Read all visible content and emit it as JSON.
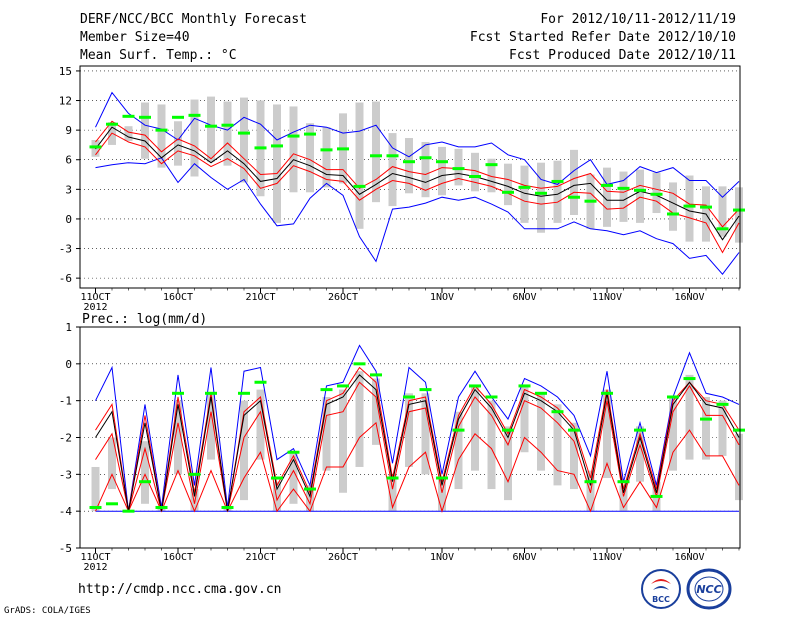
{
  "header": {
    "title": "DERF/NCC/BCC Monthly Forecast",
    "member_size": "Member Size=40",
    "variable": "Mean Surf. Temp.: °C",
    "forecast_period": "For 2012/10/11-2012/11/19",
    "started_refer_date": "Fcst Started Refer Date 2012/10/10",
    "produced_date": "Fcst Produced Date 2012/10/11"
  },
  "footer": {
    "url": "http://cmdp.ncc.cma.gov.cn",
    "grads_credit": "GrADS: COLA/IGES",
    "logo_bcc_text": "BCC",
    "logo_ncc_text": "NCC"
  },
  "colors": {
    "ensemble_mean": "#000000",
    "plus_minus_sd": "#ff0000",
    "max_min": "#0000ff",
    "observed": "#00ff00",
    "range_bar": "#cccccc",
    "grid": "#000000"
  },
  "chart_data": [
    {
      "type": "line",
      "title": "Mean Surf. Temp.: °C",
      "ylim": [
        -7,
        15.5
      ],
      "yticks": [
        15,
        12,
        9,
        6,
        3,
        0,
        -3,
        -6
      ],
      "x_tick_labels": [
        {
          "day": 0,
          "label": "11OCT",
          "sub": "2012"
        },
        {
          "day": 5,
          "label": "16OCT"
        },
        {
          "day": 10,
          "label": "21OCT"
        },
        {
          "day": 15,
          "label": "26OCT"
        },
        {
          "day": 21,
          "label": "1NOV"
        },
        {
          "day": 26,
          "label": "6NOV"
        },
        {
          "day": 31,
          "label": "11NOV"
        },
        {
          "day": 36,
          "label": "16NOV"
        }
      ],
      "series": [
        {
          "name": "max",
          "values": [
            9.3,
            12.8,
            10.7,
            9.5,
            9.1,
            8.0,
            10.2,
            9.5,
            9.0,
            10.3,
            9.6,
            8.0,
            8.8,
            9.5,
            9.3,
            8.7,
            8.9,
            9.5,
            7.2,
            6.3,
            7.5,
            7.8,
            7.3,
            7.3,
            7.7,
            6.5,
            6.0,
            4.0,
            3.5,
            4.9,
            6.0,
            3.5,
            3.9,
            5.3,
            4.7,
            5.2,
            3.9,
            3.9,
            2.2,
            3.8
          ]
        },
        {
          "name": "plus_sd",
          "values": [
            7.8,
            9.9,
            8.8,
            8.5,
            6.8,
            8.1,
            7.4,
            6.1,
            7.7,
            6.1,
            4.5,
            4.6,
            6.6,
            6.0,
            5.0,
            5.0,
            3.1,
            4.0,
            5.3,
            4.8,
            4.5,
            5.2,
            5.1,
            4.9,
            4.3,
            4.0,
            3.4,
            3.1,
            3.3,
            4.1,
            4.6,
            2.8,
            2.7,
            3.4,
            3.0,
            2.6,
            1.5,
            1.4,
            -0.8,
            1.0
          ]
        },
        {
          "name": "mean",
          "values": [
            7.1,
            9.3,
            8.3,
            7.9,
            6.2,
            7.5,
            6.9,
            5.7,
            6.9,
            5.6,
            3.8,
            4.1,
            6.0,
            5.4,
            4.5,
            4.4,
            2.5,
            3.5,
            4.6,
            4.2,
            3.7,
            4.4,
            4.6,
            4.3,
            3.8,
            3.3,
            2.6,
            2.3,
            2.5,
            3.4,
            3.6,
            1.9,
            1.9,
            2.8,
            2.4,
            1.6,
            0.8,
            0.5,
            -2.1,
            0.3
          ]
        },
        {
          "name": "minus_sd",
          "values": [
            6.5,
            8.7,
            7.8,
            7.3,
            5.6,
            6.9,
            6.4,
            5.3,
            6.1,
            5.1,
            3.1,
            3.6,
            5.4,
            4.8,
            4.0,
            3.8,
            1.9,
            3.0,
            3.9,
            3.6,
            2.9,
            3.6,
            4.1,
            3.7,
            3.3,
            2.6,
            1.8,
            1.5,
            1.7,
            2.7,
            2.6,
            1.0,
            1.1,
            2.2,
            1.8,
            0.6,
            0.1,
            -0.4,
            -3.4,
            -0.4
          ]
        },
        {
          "name": "min",
          "values": [
            5.2,
            5.5,
            5.7,
            5.6,
            6.2,
            3.7,
            5.6,
            4.2,
            3.0,
            4.0,
            1.5,
            -0.7,
            -0.5,
            2.1,
            3.6,
            2.4,
            -1.8,
            -4.3,
            1.0,
            1.2,
            1.6,
            2.2,
            1.9,
            2.2,
            1.5,
            0.7,
            -1.0,
            -1.0,
            -1.0,
            -0.3,
            -1.0,
            -1.2,
            -1.6,
            -1.2,
            -2.0,
            -2.5,
            -4.0,
            -3.7,
            -5.6,
            -3.4
          ]
        },
        {
          "name": "observed",
          "values": [
            7.3,
            9.6,
            10.4,
            10.3,
            9.0,
            10.3,
            10.5,
            9.4,
            9.5,
            8.7,
            7.2,
            7.4,
            8.4,
            8.6,
            7.0,
            7.1,
            3.3,
            6.4,
            6.4,
            5.8,
            6.2,
            5.8,
            5.1,
            4.3,
            5.5,
            2.7,
            3.2,
            2.6,
            3.8,
            2.2,
            1.8,
            3.4,
            3.1,
            2.9,
            2.5,
            0.5,
            1.3,
            1.2,
            -1.0,
            0.9
          ]
        },
        {
          "name": "range_top",
          "values": [
            8.0,
            9.8,
            9.4,
            11.8,
            11.6,
            9.9,
            12.1,
            12.4,
            11.9,
            12.3,
            12.0,
            11.6,
            11.4,
            9.7,
            9.3,
            10.7,
            11.8,
            11.9,
            8.7,
            8.2,
            7.8,
            7.3,
            7.1,
            6.7,
            6.1,
            5.6,
            5.4,
            5.7,
            5.9,
            7.0,
            4.5,
            5.2,
            4.8,
            5.0,
            4.7,
            3.7,
            4.4,
            3.3,
            3.3,
            3.2
          ]
        },
        {
          "name": "range_bottom",
          "values": [
            6.3,
            7.5,
            7.9,
            6.1,
            5.2,
            5.4,
            4.3,
            5.8,
            5.4,
            3.7,
            2.3,
            -0.4,
            2.7,
            2.7,
            3.2,
            3.6,
            -1.0,
            1.7,
            1.3,
            2.6,
            2.2,
            2.4,
            3.4,
            2.8,
            2.7,
            1.4,
            -0.4,
            -1.4,
            -0.4,
            0.4,
            -1.0,
            -0.8,
            -0.3,
            -0.4,
            0.6,
            -1.2,
            -2.3,
            -2.3,
            -1.8,
            -2.4
          ]
        }
      ]
    },
    {
      "type": "line",
      "title": "Prec.: log(mm/d)",
      "ylim": [
        -5,
        1
      ],
      "yticks": [
        1,
        0,
        -1,
        -2,
        -3,
        -4,
        -5
      ],
      "x_tick_labels": [
        {
          "day": 0,
          "label": "11OCT",
          "sub": "2012"
        },
        {
          "day": 5,
          "label": "16OCT"
        },
        {
          "day": 10,
          "label": "21OCT"
        },
        {
          "day": 15,
          "label": "26OCT"
        },
        {
          "day": 21,
          "label": "1NOV"
        },
        {
          "day": 26,
          "label": "6NOV"
        },
        {
          "day": 31,
          "label": "11NOV"
        },
        {
          "day": 36,
          "label": "16NOV"
        }
      ],
      "series": [
        {
          "name": "max",
          "values": [
            -1.0,
            -0.1,
            -4.0,
            -1.1,
            -3.9,
            -0.3,
            -3.3,
            -0.1,
            -3.9,
            -0.2,
            -0.1,
            -2.6,
            -2.3,
            -3.3,
            -0.6,
            -0.5,
            0.5,
            -0.2,
            -2.7,
            -0.1,
            -0.5,
            -3.0,
            -0.9,
            -0.2,
            -0.9,
            -1.5,
            -0.4,
            -0.6,
            -0.9,
            -1.4,
            -2.5,
            -0.2,
            -3.2,
            -1.6,
            -3.3,
            -0.9,
            0.3,
            -0.8,
            -0.9,
            -1.1
          ]
        },
        {
          "name": "plus_sd",
          "values": [
            -1.8,
            -1.1,
            -4.0,
            -1.4,
            -4.0,
            -0.9,
            -3.5,
            -0.8,
            -4.0,
            -1.3,
            -0.9,
            -3.3,
            -2.5,
            -3.5,
            -1.0,
            -0.8,
            -0.1,
            -0.5,
            -3.1,
            -1.0,
            -0.9,
            -3.2,
            -1.4,
            -0.6,
            -1.1,
            -1.9,
            -0.7,
            -0.9,
            -1.2,
            -1.7,
            -3.1,
            -0.7,
            -3.4,
            -1.9,
            -3.4,
            -1.0,
            -0.5,
            -1.0,
            -1.1,
            -1.8
          ]
        },
        {
          "name": "mean",
          "values": [
            -2.0,
            -1.3,
            -4.0,
            -1.6,
            -4.0,
            -1.1,
            -3.6,
            -0.9,
            -4.0,
            -1.4,
            -1.0,
            -3.4,
            -2.6,
            -3.6,
            -1.1,
            -0.9,
            -0.3,
            -0.7,
            -3.2,
            -1.1,
            -1.0,
            -3.3,
            -1.5,
            -0.7,
            -1.2,
            -2.0,
            -0.8,
            -1.0,
            -1.3,
            -1.8,
            -3.3,
            -0.8,
            -3.5,
            -2.0,
            -3.5,
            -1.1,
            -0.5,
            -1.1,
            -1.2,
            -2.0
          ]
        },
        {
          "name": "minus_sd",
          "values": [
            -2.6,
            -1.9,
            -4.0,
            -2.3,
            -4.0,
            -1.6,
            -3.8,
            -1.3,
            -4.0,
            -2.0,
            -1.3,
            -3.7,
            -2.9,
            -3.8,
            -1.4,
            -1.3,
            -0.5,
            -0.9,
            -3.4,
            -1.3,
            -1.2,
            -3.5,
            -1.7,
            -0.9,
            -1.4,
            -2.2,
            -1.0,
            -1.2,
            -1.6,
            -2.1,
            -3.5,
            -1.0,
            -3.6,
            -2.2,
            -3.6,
            -1.3,
            -0.6,
            -1.4,
            -1.4,
            -2.2
          ]
        },
        {
          "name": "minus2_sd",
          "values": [
            -4.0,
            -3.0,
            -4.0,
            -3.0,
            -4.0,
            -2.9,
            -4.0,
            -2.9,
            -4.0,
            -3.1,
            -2.4,
            -4.0,
            -3.4,
            -4.0,
            -2.8,
            -2.8,
            -2.0,
            -1.6,
            -3.9,
            -2.8,
            -2.4,
            -4.0,
            -2.6,
            -1.9,
            -2.3,
            -3.2,
            -2.0,
            -2.4,
            -2.9,
            -3.0,
            -4.0,
            -2.7,
            -3.9,
            -3.2,
            -3.9,
            -2.4,
            -1.8,
            -2.5,
            -2.5,
            -3.3
          ]
        },
        {
          "name": "min",
          "values": [
            -4.0,
            -4.0,
            -4.0,
            -4.0,
            -4.0,
            -4.0,
            -4.0,
            -4.0,
            -4.0,
            -4.0,
            -4.0,
            -4.0,
            -4.0,
            -4.0,
            -4.0,
            -4.0,
            -4.0,
            -4.0,
            -4.0,
            -4.0,
            -4.0,
            -4.0,
            -4.0,
            -4.0,
            -4.0,
            -4.0,
            -4.0,
            -4.0,
            -4.0,
            -4.0,
            -4.0,
            -4.0,
            -4.0,
            -4.0,
            -4.0,
            -4.0,
            -4.0,
            -4.0,
            -4.0,
            -4.0
          ]
        },
        {
          "name": "observed",
          "values": [
            -3.9,
            -3.8,
            -4.0,
            -3.2,
            -3.9,
            -0.8,
            -3.0,
            -0.8,
            -3.9,
            -0.8,
            -0.5,
            -3.1,
            -2.4,
            -3.4,
            -0.7,
            -0.6,
            0.0,
            -0.3,
            -3.1,
            -0.9,
            -0.7,
            -3.1,
            -1.8,
            -0.6,
            -0.9,
            -1.8,
            -0.6,
            -0.8,
            -1.3,
            -1.8,
            -3.2,
            -0.8,
            -3.2,
            -1.8,
            -3.6,
            -0.9,
            -0.4,
            -1.5,
            -1.1,
            -1.8
          ]
        },
        {
          "name": "range_top",
          "values": [
            -2.8,
            -2.0,
            -4.0,
            -2.1,
            -3.9,
            -1.0,
            -3.4,
            -0.8,
            -3.9,
            -1.0,
            -0.7,
            -3.2,
            -2.4,
            -3.3,
            -0.9,
            -0.7,
            -0.2,
            -0.4,
            -3.0,
            -0.8,
            -0.8,
            -3.1,
            -1.3,
            -0.6,
            -1.0,
            -1.7,
            -0.6,
            -0.8,
            -1.1,
            -1.6,
            -2.9,
            -0.7,
            -3.3,
            -1.7,
            -3.2,
            -0.9,
            -0.3,
            -0.9,
            -1.0,
            -1.9
          ]
        },
        {
          "name": "range_bottom",
          "values": [
            -4.0,
            -3.4,
            -4.0,
            -3.8,
            -4.0,
            -3.0,
            -4.0,
            -2.6,
            -4.0,
            -3.7,
            -2.6,
            -4.0,
            -3.8,
            -4.0,
            -2.9,
            -3.5,
            -2.8,
            -2.2,
            -4.0,
            -2.8,
            -3.0,
            -4.0,
            -3.4,
            -2.9,
            -3.4,
            -3.7,
            -2.4,
            -2.9,
            -3.3,
            -3.4,
            -4.0,
            -3.1,
            -4.0,
            -3.2,
            -4.0,
            -2.9,
            -2.6,
            -2.6,
            -2.5,
            -3.7
          ]
        }
      ]
    }
  ]
}
